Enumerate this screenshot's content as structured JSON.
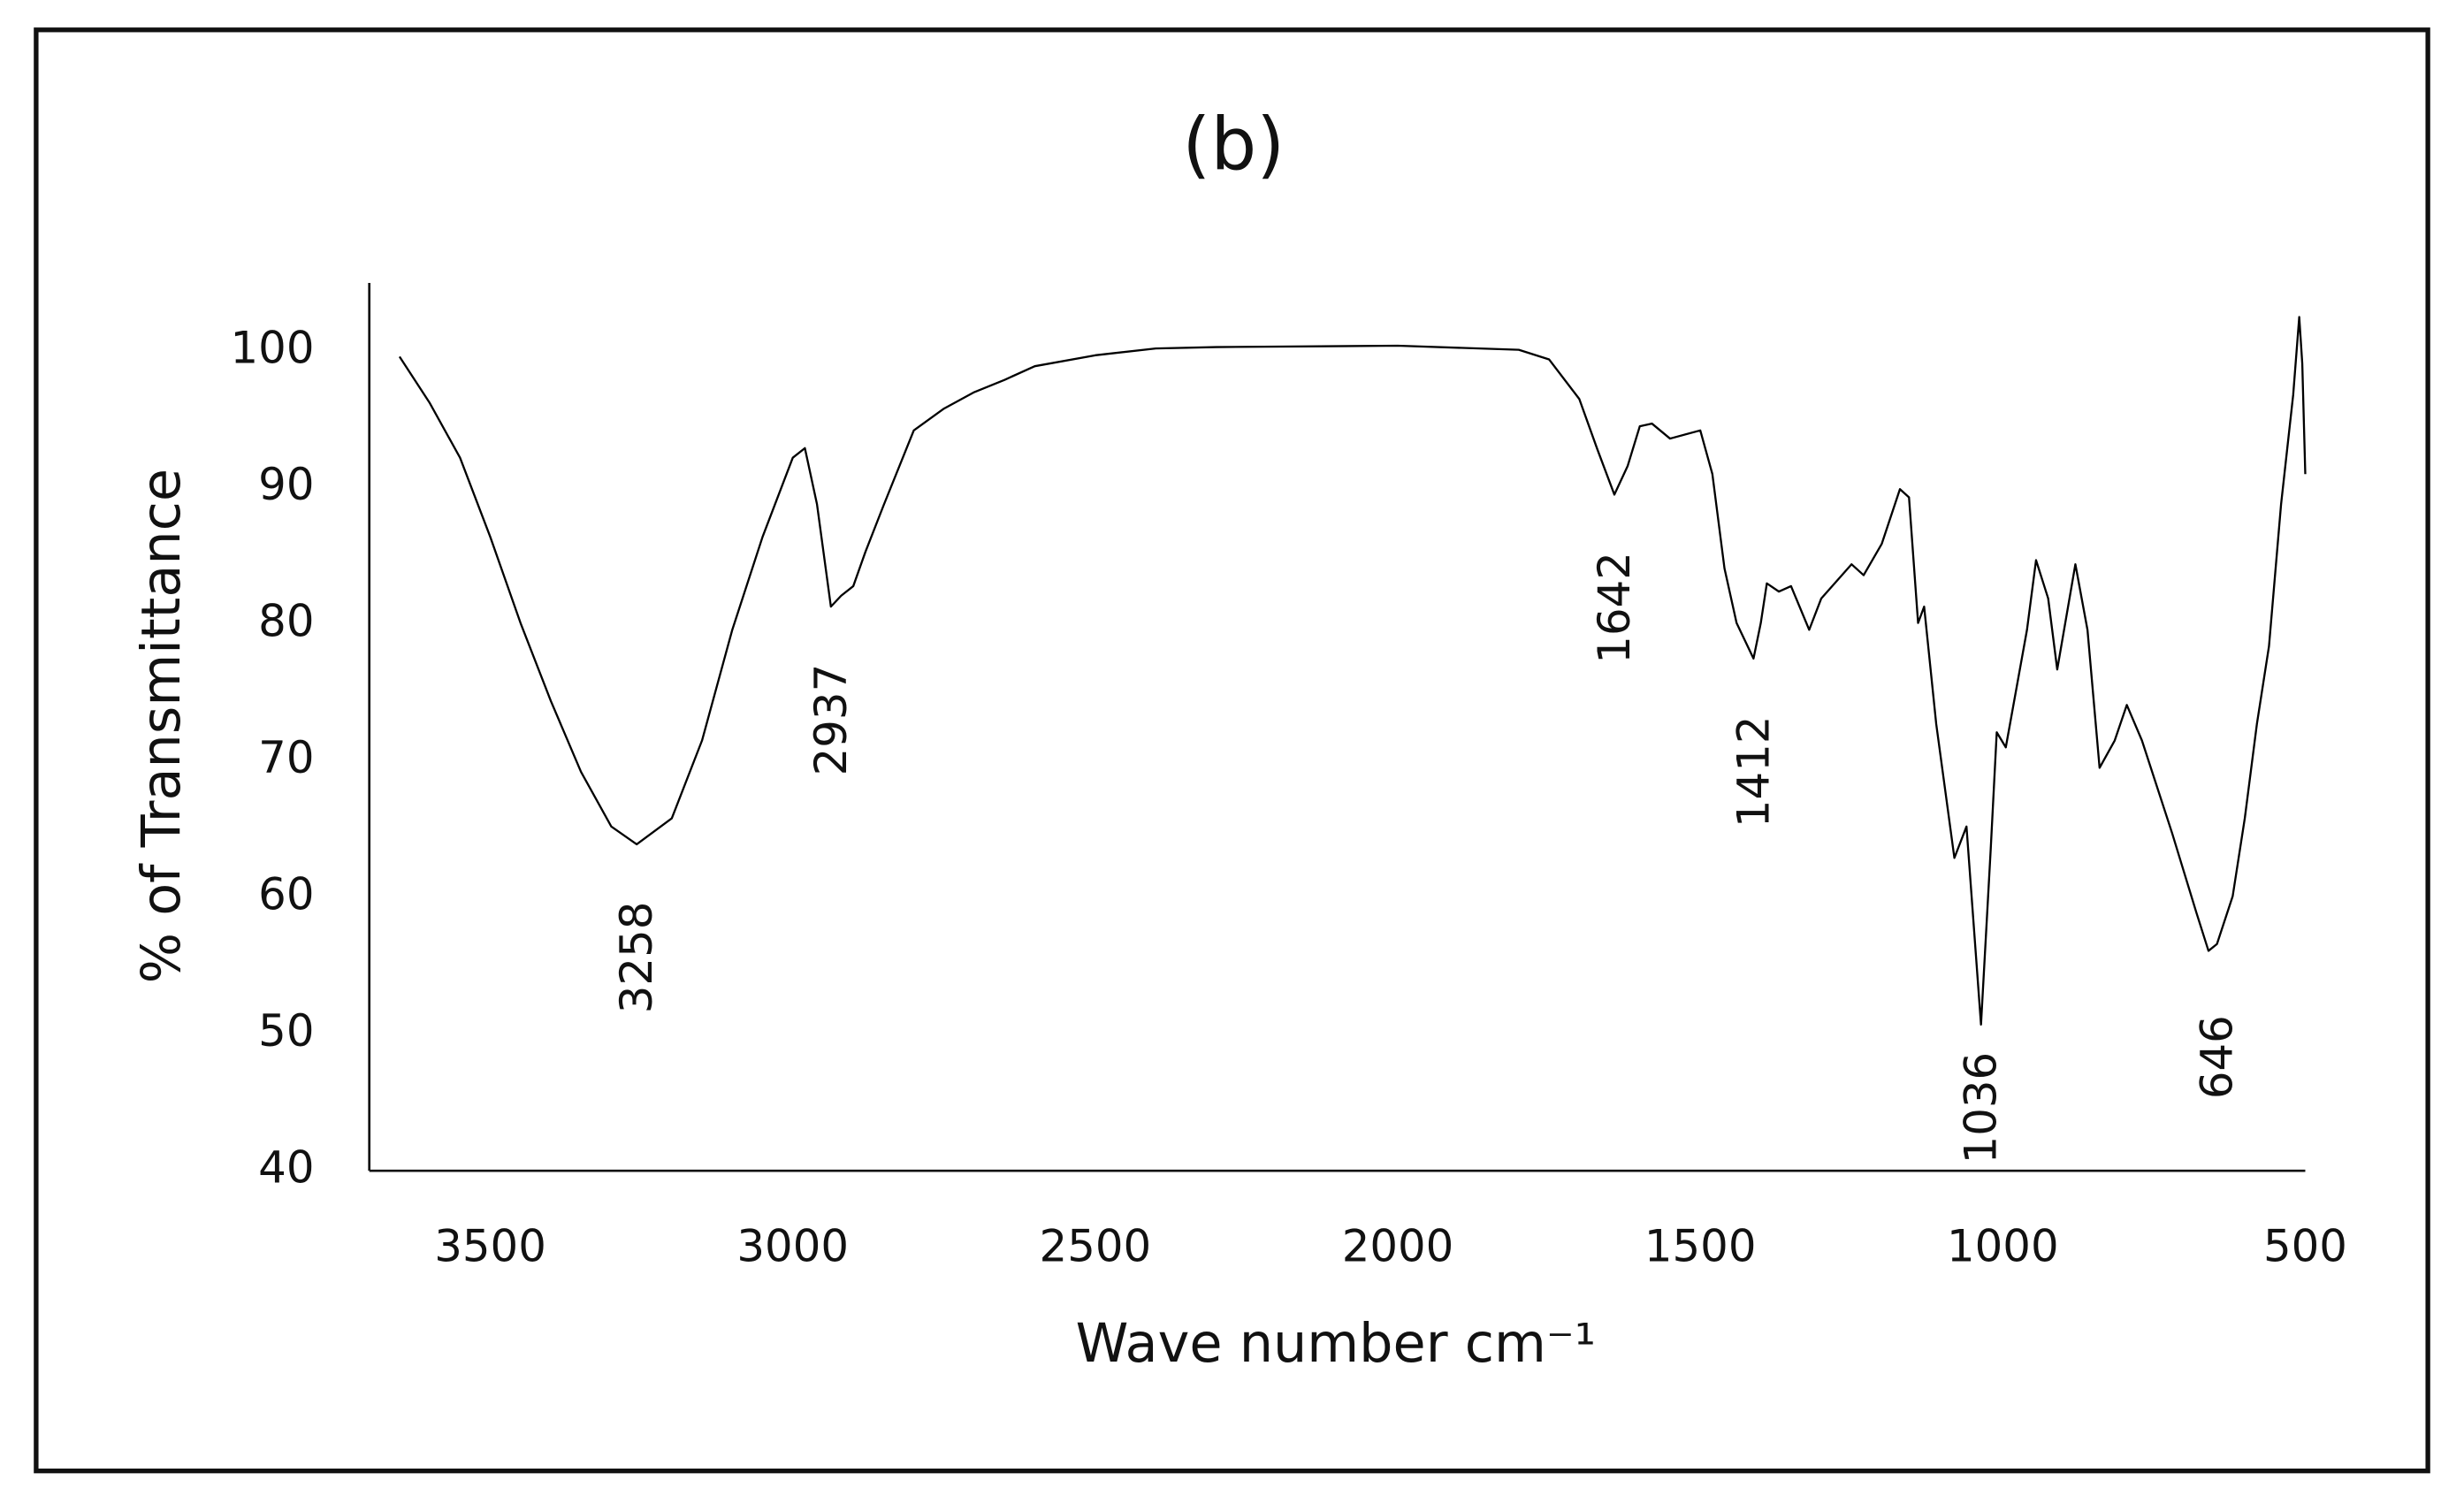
{
  "chart_data": {
    "type": "line",
    "title": "(b)",
    "xlabel": "Wave number cm⁻¹",
    "ylabel": "% of Transmittance",
    "xlim": [
      3700,
      500
    ],
    "ylim": [
      40,
      105
    ],
    "xticks": [
      3500,
      3000,
      2500,
      2000,
      1500,
      1000,
      500
    ],
    "yticks": [
      40,
      50,
      60,
      70,
      80,
      90,
      100
    ],
    "grid": false,
    "annotations": [
      "3258",
      "2937",
      "1642",
      "1412",
      "1036",
      "646"
    ],
    "series": [
      {
        "name": null,
        "color": "#000000",
        "x": [
          3650,
          3600,
          3550,
          3500,
          3450,
          3400,
          3350,
          3300,
          3258,
          3200,
          3150,
          3100,
          3050,
          3000,
          2980,
          2960,
          2937,
          2920,
          2900,
          2880,
          2850,
          2800,
          2750,
          2700,
          2650,
          2600,
          2500,
          2400,
          2300,
          2000,
          1800,
          1750,
          1700,
          1670,
          1642,
          1620,
          1600,
          1580,
          1550,
          1500,
          1480,
          1460,
          1440,
          1412,
          1400,
          1390,
          1370,
          1350,
          1320,
          1300,
          1250,
          1230,
          1200,
          1170,
          1155,
          1140,
          1130,
          1110,
          1080,
          1060,
          1036,
          1020,
          1010,
          995,
          960,
          945,
          925,
          910,
          880,
          860,
          840,
          815,
          795,
          770,
          720,
          680,
          660,
          646,
          620,
          600,
          580,
          560,
          540,
          520,
          510,
          505,
          500
        ],
        "values": [
          99.6,
          96.2,
          92.2,
          86.4,
          80.1,
          74.4,
          69.2,
          65.2,
          63.9,
          65.8,
          71.5,
          79.6,
          86.4,
          92.2,
          92.9,
          88.8,
          81.3,
          82.1,
          82.8,
          85.3,
          88.7,
          94.2,
          95.8,
          97.0,
          97.9,
          98.9,
          99.7,
          100.2,
          100.3,
          100.4,
          100.1,
          99.4,
          96.5,
          92.8,
          89.5,
          91.6,
          94.5,
          94.7,
          93.6,
          94.2,
          91.0,
          84.1,
          80.1,
          77.5,
          80.1,
          83.0,
          82.4,
          82.8,
          79.6,
          81.9,
          84.4,
          83.6,
          85.9,
          89.9,
          89.3,
          80.1,
          81.3,
          72.7,
          62.9,
          65.2,
          50.7,
          63.5,
          72.1,
          71.0,
          79.6,
          84.7,
          81.9,
          76.7,
          84.4,
          79.6,
          69.5,
          71.5,
          74.1,
          71.5,
          64.7,
          58.9,
          56.1,
          56.6,
          60.1,
          65.8,
          72.7,
          78.4,
          88.8,
          96.8,
          102.5,
          99.1,
          91.0
        ]
      }
    ]
  }
}
